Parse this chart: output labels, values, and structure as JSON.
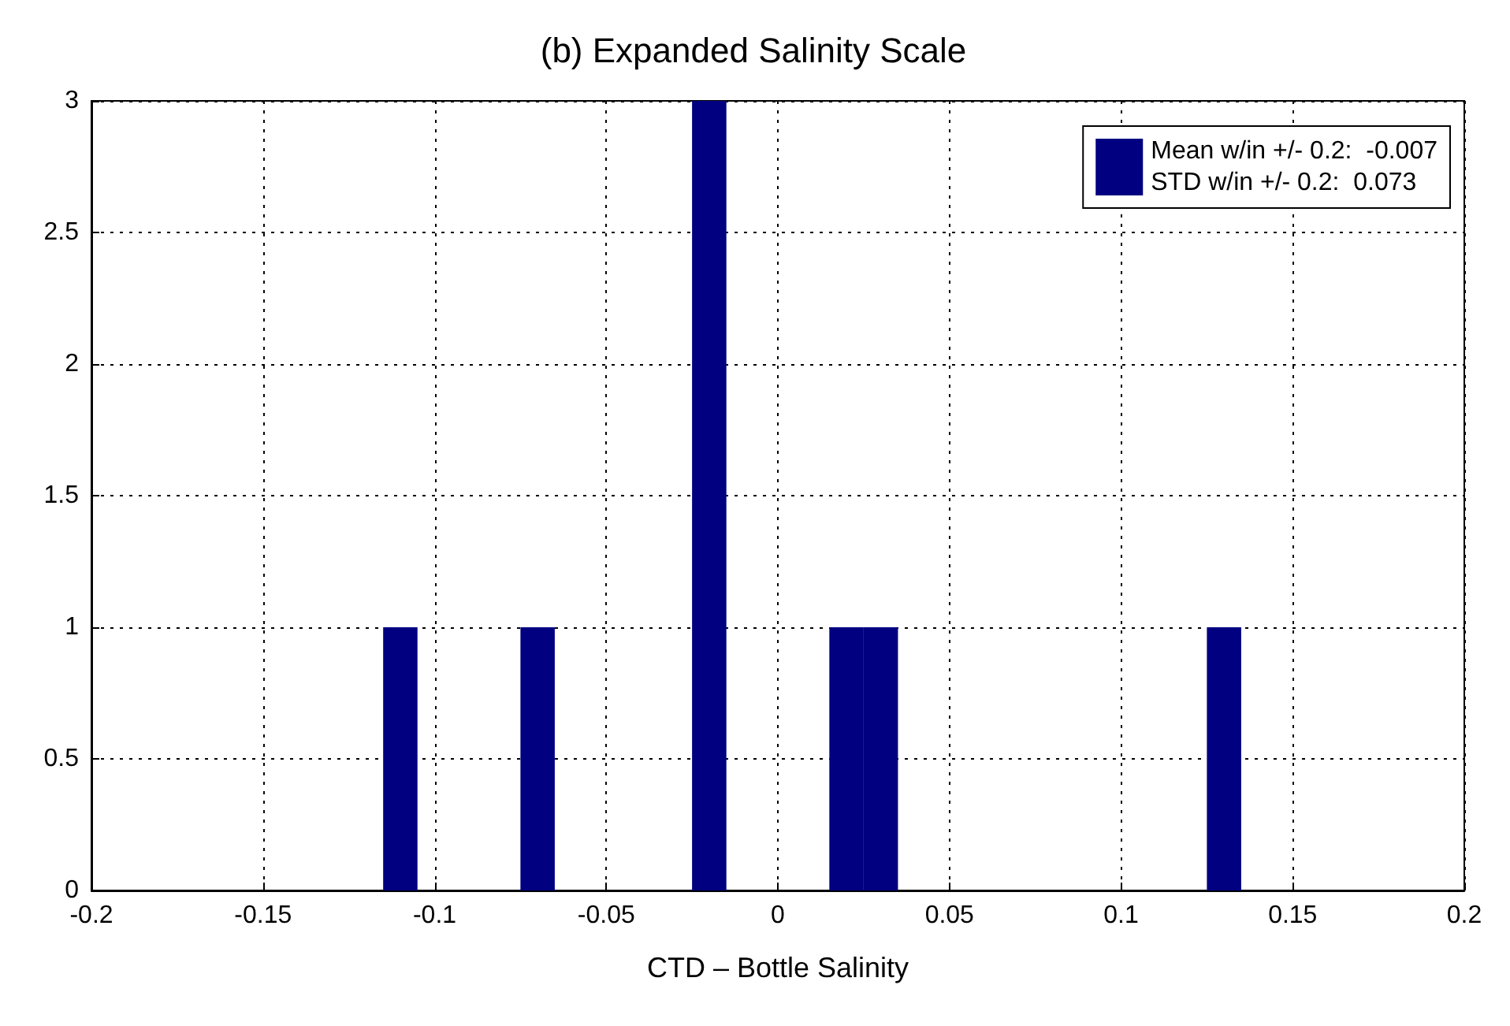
{
  "chart_data": {
    "type": "histogram",
    "title": "(b) Expanded Salinity Scale",
    "xlabel": "CTD – Bottle Salinity",
    "bins": [
      -0.115,
      -0.105,
      -0.095,
      -0.085,
      -0.075,
      -0.065,
      -0.055,
      -0.045,
      -0.035,
      -0.025,
      -0.015,
      -0.005,
      0.005,
      0.015,
      0.025,
      0.035,
      0.045,
      0.055,
      0.065,
      0.075,
      0.085,
      0.095,
      0.105,
      0.115,
      0.125,
      0.135
    ],
    "series": [
      {
        "name": "Mean w/in +/- 0.2:  -0.007\nSTD w/in +/- 0.2:  0.073",
        "color": "#000080",
        "values": [
          1,
          0,
          0,
          0,
          1,
          0,
          0,
          0,
          0,
          3,
          0,
          0,
          0,
          1,
          1,
          0,
          0,
          0,
          0,
          0,
          0,
          0,
          0,
          0,
          1
        ]
      }
    ],
    "xlim": [
      -0.2,
      0.2
    ],
    "xticks": [
      -0.2,
      -0.15,
      -0.1,
      -0.05,
      0,
      0.05,
      0.1,
      0.15,
      0.2
    ],
    "ylim": [
      0,
      3
    ],
    "yticks": [
      0,
      0.5,
      1,
      1.5,
      2,
      2.5,
      3
    ],
    "grid": true,
    "legend": "top right"
  }
}
